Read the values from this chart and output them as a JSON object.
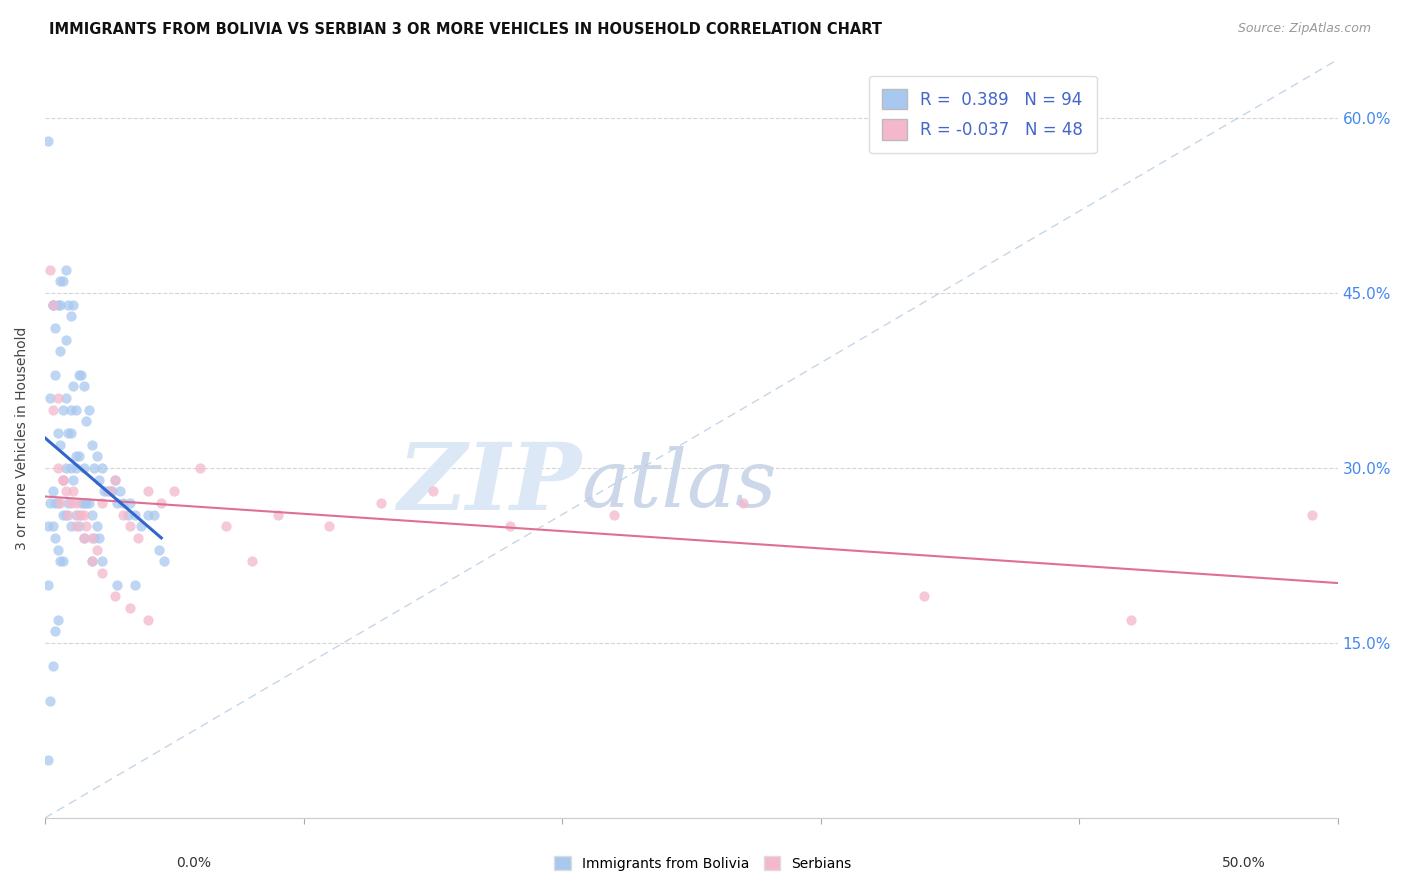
{
  "title": "IMMIGRANTS FROM BOLIVIA VS SERBIAN 3 OR MORE VEHICLES IN HOUSEHOLD CORRELATION CHART",
  "source": "Source: ZipAtlas.com",
  "ylabel": "3 or more Vehicles in Household",
  "right_yticks": [
    "60.0%",
    "45.0%",
    "30.0%",
    "15.0%"
  ],
  "right_ytick_vals": [
    0.6,
    0.45,
    0.3,
    0.15
  ],
  "legend_label1": "Immigrants from Bolivia",
  "legend_label2": "Serbians",
  "r1": 0.389,
  "n1": 94,
  "r2": -0.037,
  "n2": 48,
  "color_blue": "#a8c8f0",
  "color_pink": "#f4b8cc",
  "color_line_blue": "#3366cc",
  "color_line_pink": "#e07090",
  "color_diag": "#b8cce0",
  "bolivia_x": [
    0.001,
    0.001,
    0.001,
    0.001,
    0.002,
    0.002,
    0.002,
    0.003,
    0.003,
    0.003,
    0.003,
    0.004,
    0.004,
    0.004,
    0.004,
    0.005,
    0.005,
    0.005,
    0.005,
    0.005,
    0.006,
    0.006,
    0.006,
    0.006,
    0.007,
    0.007,
    0.007,
    0.007,
    0.007,
    0.008,
    0.008,
    0.008,
    0.008,
    0.009,
    0.009,
    0.009,
    0.01,
    0.01,
    0.01,
    0.01,
    0.011,
    0.011,
    0.011,
    0.012,
    0.012,
    0.012,
    0.013,
    0.013,
    0.013,
    0.014,
    0.014,
    0.015,
    0.015,
    0.015,
    0.016,
    0.016,
    0.017,
    0.017,
    0.018,
    0.018,
    0.019,
    0.019,
    0.02,
    0.02,
    0.021,
    0.021,
    0.022,
    0.023,
    0.024,
    0.025,
    0.026,
    0.027,
    0.028,
    0.029,
    0.03,
    0.032,
    0.033,
    0.035,
    0.037,
    0.04,
    0.042,
    0.044,
    0.046,
    0.003,
    0.004,
    0.006,
    0.008,
    0.01,
    0.012,
    0.015,
    0.018,
    0.022,
    0.028,
    0.035
  ],
  "bolivia_y": [
    0.58,
    0.25,
    0.2,
    0.05,
    0.36,
    0.27,
    0.1,
    0.44,
    0.28,
    0.25,
    0.13,
    0.38,
    0.27,
    0.24,
    0.16,
    0.44,
    0.33,
    0.27,
    0.23,
    0.17,
    0.46,
    0.4,
    0.32,
    0.22,
    0.46,
    0.35,
    0.29,
    0.26,
    0.22,
    0.47,
    0.36,
    0.3,
    0.26,
    0.44,
    0.33,
    0.27,
    0.43,
    0.35,
    0.3,
    0.25,
    0.44,
    0.37,
    0.29,
    0.35,
    0.3,
    0.26,
    0.38,
    0.31,
    0.25,
    0.38,
    0.27,
    0.37,
    0.3,
    0.24,
    0.34,
    0.27,
    0.35,
    0.27,
    0.32,
    0.26,
    0.3,
    0.24,
    0.31,
    0.25,
    0.29,
    0.24,
    0.3,
    0.28,
    0.28,
    0.28,
    0.28,
    0.29,
    0.27,
    0.28,
    0.27,
    0.26,
    0.27,
    0.26,
    0.25,
    0.26,
    0.26,
    0.23,
    0.22,
    0.44,
    0.42,
    0.44,
    0.41,
    0.33,
    0.31,
    0.27,
    0.22,
    0.22,
    0.2,
    0.2
  ],
  "serbian_x": [
    0.002,
    0.003,
    0.005,
    0.006,
    0.007,
    0.008,
    0.01,
    0.011,
    0.012,
    0.013,
    0.014,
    0.015,
    0.016,
    0.018,
    0.02,
    0.022,
    0.025,
    0.027,
    0.03,
    0.033,
    0.036,
    0.04,
    0.045,
    0.05,
    0.06,
    0.07,
    0.08,
    0.09,
    0.11,
    0.13,
    0.15,
    0.18,
    0.22,
    0.27,
    0.34,
    0.42,
    0.49,
    0.003,
    0.005,
    0.007,
    0.009,
    0.012,
    0.015,
    0.018,
    0.022,
    0.027,
    0.033,
    0.04
  ],
  "serbian_y": [
    0.47,
    0.35,
    0.3,
    0.27,
    0.29,
    0.28,
    0.27,
    0.28,
    0.27,
    0.26,
    0.26,
    0.26,
    0.25,
    0.24,
    0.23,
    0.27,
    0.28,
    0.29,
    0.26,
    0.25,
    0.24,
    0.28,
    0.27,
    0.28,
    0.3,
    0.25,
    0.22,
    0.26,
    0.25,
    0.27,
    0.28,
    0.25,
    0.26,
    0.27,
    0.19,
    0.17,
    0.26,
    0.44,
    0.36,
    0.29,
    0.26,
    0.25,
    0.24,
    0.22,
    0.21,
    0.19,
    0.18,
    0.17
  ],
  "xlim": [
    0.0,
    0.5
  ],
  "ylim": [
    0.0,
    0.65
  ],
  "xtick_vals": [
    0.0,
    0.1,
    0.2,
    0.3,
    0.4,
    0.5
  ],
  "ytick_vals": [
    0.0,
    0.15,
    0.3,
    0.45,
    0.6
  ],
  "watermark_zip": "ZIP",
  "watermark_atlas": "atlas",
  "watermark_color": "#dce8f5",
  "watermark_color2": "#ccd8ea",
  "background_color": "#ffffff"
}
